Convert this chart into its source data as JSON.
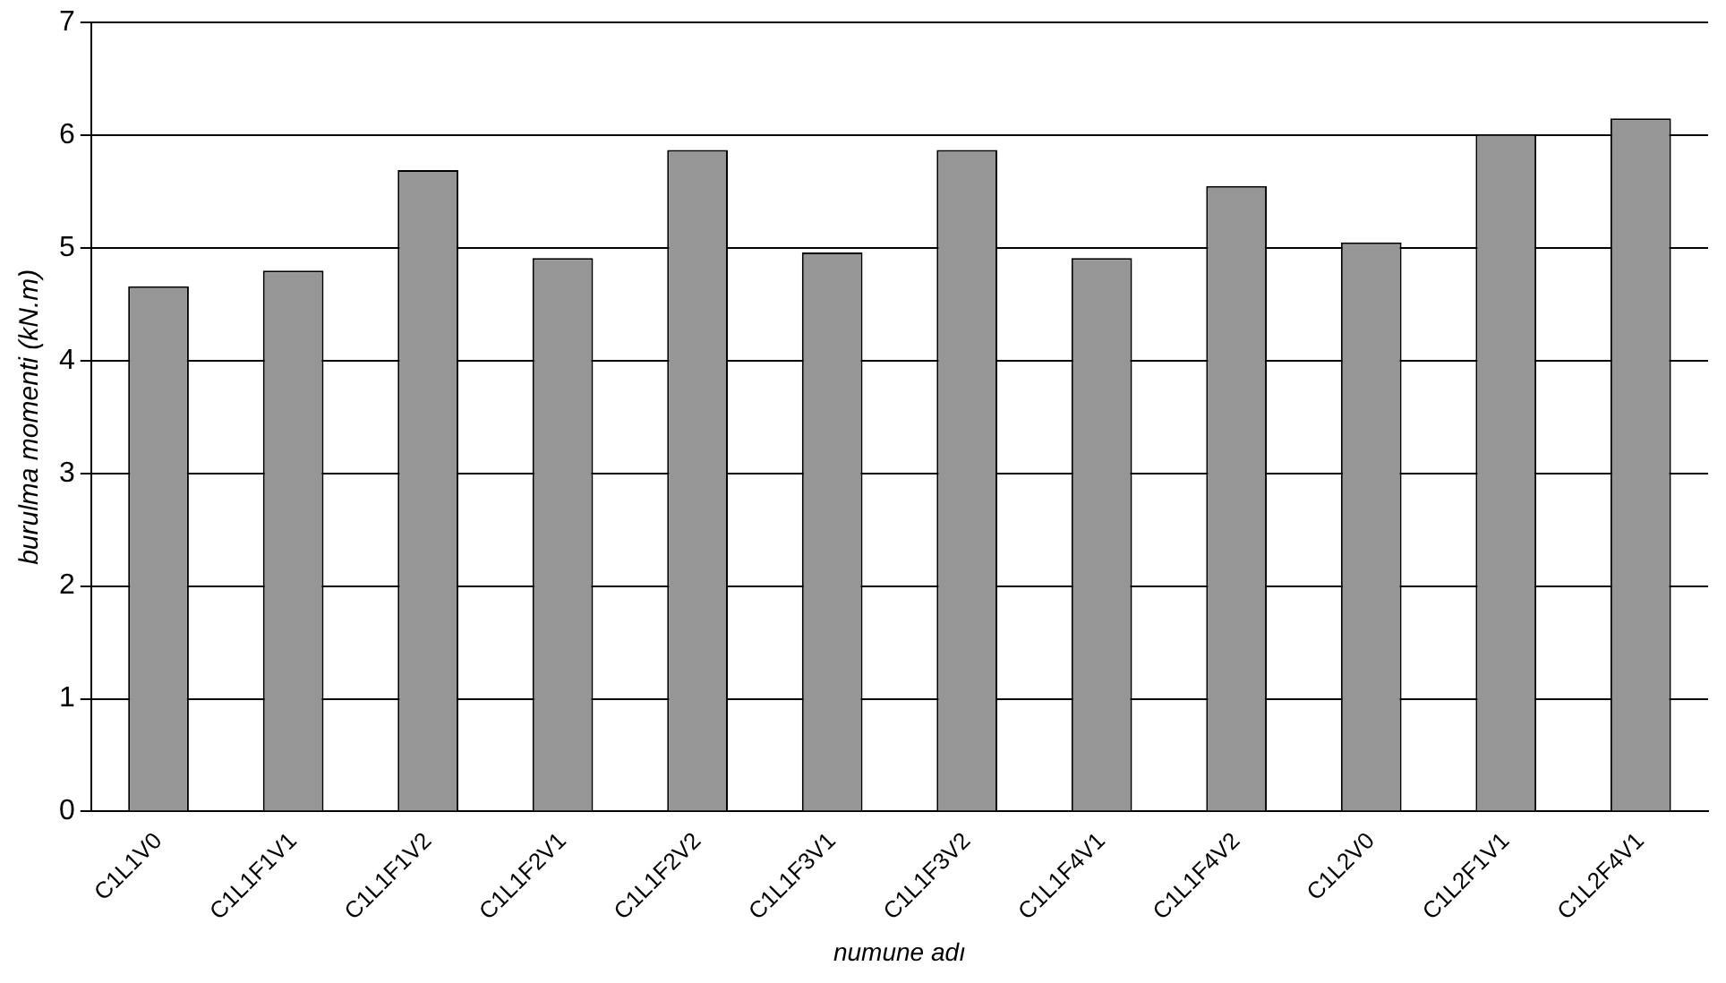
{
  "chart_data": {
    "type": "bar",
    "xlabel": "numune adı",
    "ylabel": "burulma momenti (kN.m)",
    "categories": [
      "C1L1V0",
      "C1L1F1V1",
      "C1L1F1V2",
      "C1L1F2V1",
      "C1L1F2V2",
      "C1L1F3V1",
      "C1L1F3V2",
      "C1L1F4V1",
      "C1L1F4V2",
      "C1L2V0",
      "C1L2F1V1",
      "C1L2F4V1"
    ],
    "values": [
      4.66,
      4.8,
      5.69,
      4.91,
      5.87,
      4.96,
      5.87,
      4.91,
      5.55,
      5.05,
      6.01,
      6.15
    ],
    "color": "#969696",
    "ylim": [
      0,
      7
    ],
    "yticks": [
      0,
      1,
      2,
      3,
      4,
      5,
      6,
      7
    ],
    "grid": "y",
    "legend": false
  }
}
